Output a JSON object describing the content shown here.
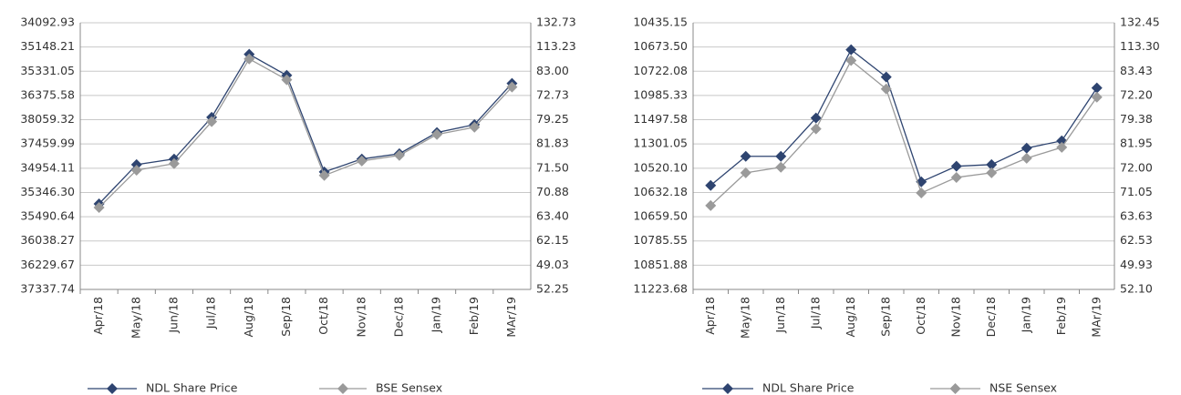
{
  "chart_data": [
    {
      "type": "line",
      "categories": [
        "Apr/18",
        "May/18",
        "Jun/18",
        "Jul/18",
        "Aug/18",
        "Sep/18",
        "Oct/18",
        "Nov/18",
        "Dec/18",
        "Jan/19",
        "Feb/19",
        "MAr/19"
      ],
      "series": [
        {
          "name": "NDL Share Price",
          "color": "#2e4470",
          "values": [
            3.53,
            5.15,
            5.38,
            7.1,
            9.7,
            8.83,
            4.85,
            5.38,
            5.6,
            6.47,
            6.8,
            8.5
          ]
        },
        {
          "name": "BSE Sensex",
          "color": "#9a9a9a",
          "values": [
            3.38,
            4.92,
            5.19,
            6.92,
            9.51,
            8.65,
            4.7,
            5.3,
            5.53,
            6.39,
            6.69,
            8.35
          ]
        }
      ],
      "ylim": [
        0,
        11
      ],
      "yticks": [
        {
          "value": 11,
          "label": "34092.93"
        },
        {
          "value": 10,
          "label": "35148.21"
        },
        {
          "value": 9,
          "label": "35331.05"
        },
        {
          "value": 8,
          "label": "36375.58"
        },
        {
          "value": 7,
          "label": "38059.32"
        },
        {
          "value": 6,
          "label": "37459.99"
        },
        {
          "value": 5,
          "label": "34954.11"
        },
        {
          "value": 4,
          "label": "35346.30"
        },
        {
          "value": 3,
          "label": "35490.64"
        },
        {
          "value": 2,
          "label": "36038.27"
        },
        {
          "value": 1,
          "label": "36229.67"
        },
        {
          "value": 0,
          "label": "37337.74"
        }
      ],
      "y2lim": [
        0,
        11
      ],
      "y2ticks": [
        {
          "value": 11,
          "label": "132.73"
        },
        {
          "value": 10,
          "label": "113.23"
        },
        {
          "value": 9,
          "label": "83.00"
        },
        {
          "value": 8,
          "label": "72.73"
        },
        {
          "value": 7,
          "label": "79.25"
        },
        {
          "value": 6,
          "label": "81.83"
        },
        {
          "value": 5,
          "label": "71.50"
        },
        {
          "value": 4,
          "label": "70.88"
        },
        {
          "value": 3,
          "label": "63.40"
        },
        {
          "value": 2,
          "label": "62.15"
        },
        {
          "value": 1,
          "label": "49.03"
        },
        {
          "value": 0,
          "label": "52.25"
        }
      ],
      "grid": true
    },
    {
      "type": "line",
      "categories": [
        "Apr/18",
        "May/18",
        "Jun/18",
        "Jul/18",
        "Aug/18",
        "Sep/18",
        "Oct/18",
        "Nov/18",
        "Dec/18",
        "Jan/19",
        "Feb/19",
        "MAr/19"
      ],
      "series": [
        {
          "name": "NDL Share Price",
          "color": "#2e4470",
          "values": [
            4.29,
            5.49,
            5.49,
            7.07,
            9.89,
            8.76,
            4.44,
            5.08,
            5.15,
            5.83,
            6.13,
            8.31
          ]
        },
        {
          "name": "NSE Sensex",
          "color": "#9a9a9a",
          "values": [
            3.46,
            4.81,
            5.04,
            6.62,
            9.44,
            8.27,
            3.98,
            4.62,
            4.81,
            5.41,
            5.86,
            7.93
          ]
        }
      ],
      "ylim": [
        0,
        11
      ],
      "yticks": [
        {
          "value": 11,
          "label": "10435.15"
        },
        {
          "value": 10,
          "label": "10673.50"
        },
        {
          "value": 9,
          "label": "10722.08"
        },
        {
          "value": 8,
          "label": "10985.33"
        },
        {
          "value": 7,
          "label": "11497.58"
        },
        {
          "value": 6,
          "label": "11301.05"
        },
        {
          "value": 5,
          "label": "10520.10"
        },
        {
          "value": 4,
          "label": "10632.18"
        },
        {
          "value": 3,
          "label": "10659.50"
        },
        {
          "value": 2,
          "label": "10785.55"
        },
        {
          "value": 1,
          "label": "10851.88"
        },
        {
          "value": 0,
          "label": "11223.68"
        }
      ],
      "y2lim": [
        0,
        11
      ],
      "y2ticks": [
        {
          "value": 11,
          "label": "132.45"
        },
        {
          "value": 10,
          "label": "113.30"
        },
        {
          "value": 9,
          "label": "83.43"
        },
        {
          "value": 8,
          "label": "72.20"
        },
        {
          "value": 7,
          "label": "79.38"
        },
        {
          "value": 6,
          "label": "81.95"
        },
        {
          "value": 5,
          "label": "72.00"
        },
        {
          "value": 4,
          "label": "71.05"
        },
        {
          "value": 3,
          "label": "63.63"
        },
        {
          "value": 2,
          "label": "62.53"
        },
        {
          "value": 1,
          "label": "49.93"
        },
        {
          "value": 0,
          "label": "52.10"
        }
      ],
      "grid": true
    }
  ]
}
